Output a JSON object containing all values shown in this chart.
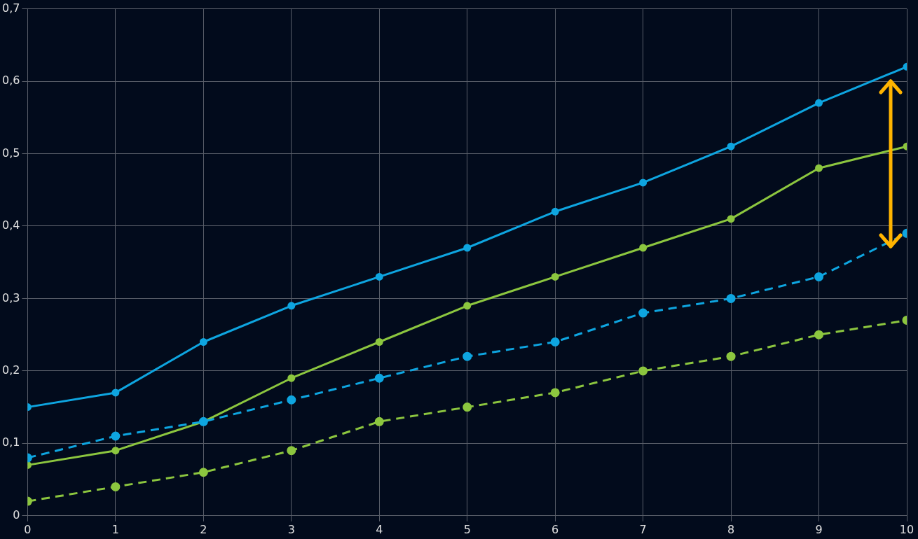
{
  "chart_data": {
    "type": "line",
    "x": [
      0,
      1,
      2,
      3,
      4,
      5,
      6,
      7,
      8,
      9,
      10
    ],
    "series": [
      {
        "color": "#0ea5e0",
        "line_style": "solid",
        "values": [
          0.15,
          0.17,
          0.24,
          0.29,
          0.33,
          0.37,
          0.42,
          0.46,
          0.51,
          0.57,
          0.62
        ]
      },
      {
        "color": "#8cc63f",
        "line_style": "solid",
        "values": [
          0.07,
          0.09,
          0.13,
          0.19,
          0.24,
          0.29,
          0.33,
          0.37,
          0.41,
          0.48,
          0.51
        ]
      },
      {
        "color": "#0ea5e0",
        "line_style": "dashed",
        "values": [
          0.08,
          0.11,
          0.13,
          0.16,
          0.19,
          0.22,
          0.24,
          0.28,
          0.3,
          0.33,
          0.39
        ]
      },
      {
        "color": "#8cc63f",
        "line_style": "dashed",
        "values": [
          0.02,
          0.04,
          0.06,
          0.09,
          0.13,
          0.15,
          0.17,
          0.2,
          0.22,
          0.25,
          0.27
        ]
      }
    ],
    "xlim": [
      0,
      10
    ],
    "xticks": [
      0,
      1,
      2,
      3,
      4,
      5,
      6,
      7,
      8,
      9,
      10
    ],
    "ylim": [
      0,
      0.7
    ],
    "yticks": [
      0,
      {
        "value": 0.1,
        "label": "0,1"
      },
      {
        "value": 0.2,
        "label": "0,2"
      },
      {
        "value": 0.3,
        "label": "0,3"
      },
      {
        "value": 0.4,
        "label": "0,4"
      },
      {
        "value": 0.5,
        "label": "0,5"
      },
      {
        "value": 0.6,
        "label": "0,6"
      },
      {
        "value": 0.7,
        "label": "0,7"
      }
    ],
    "grid": true,
    "legend": false,
    "marker": "circle"
  }
}
